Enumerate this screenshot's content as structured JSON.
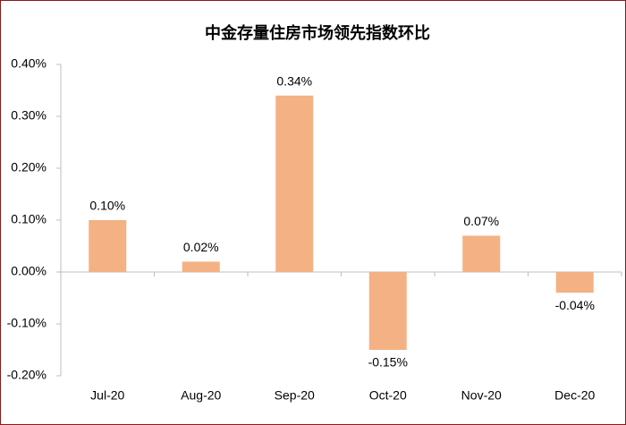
{
  "chart_data": {
    "type": "bar",
    "title": "中金存量住房市场领先指数环比",
    "categories": [
      "Jul-20",
      "Aug-20",
      "Sep-20",
      "Oct-20",
      "Nov-20",
      "Dec-20"
    ],
    "values": [
      0.1,
      0.02,
      0.34,
      -0.15,
      0.07,
      -0.04
    ],
    "value_labels": [
      "0.10%",
      "0.02%",
      "0.34%",
      "-0.15%",
      "0.07%",
      "-0.04%"
    ],
    "color": "#f4b183",
    "ylim": [
      -0.2,
      0.4
    ],
    "yticks": [
      {
        "value": -0.2,
        "label": "-0.20%"
      },
      {
        "value": -0.1,
        "label": "-0.10%"
      },
      {
        "value": 0,
        "label": "0.00%"
      },
      {
        "value": 0.1,
        "label": "0.10%"
      },
      {
        "value": 0.2,
        "label": "0.20%"
      },
      {
        "value": 0.3,
        "label": "0.30%"
      },
      {
        "value": 0.4,
        "label": "0.40%"
      }
    ],
    "grid": false
  }
}
